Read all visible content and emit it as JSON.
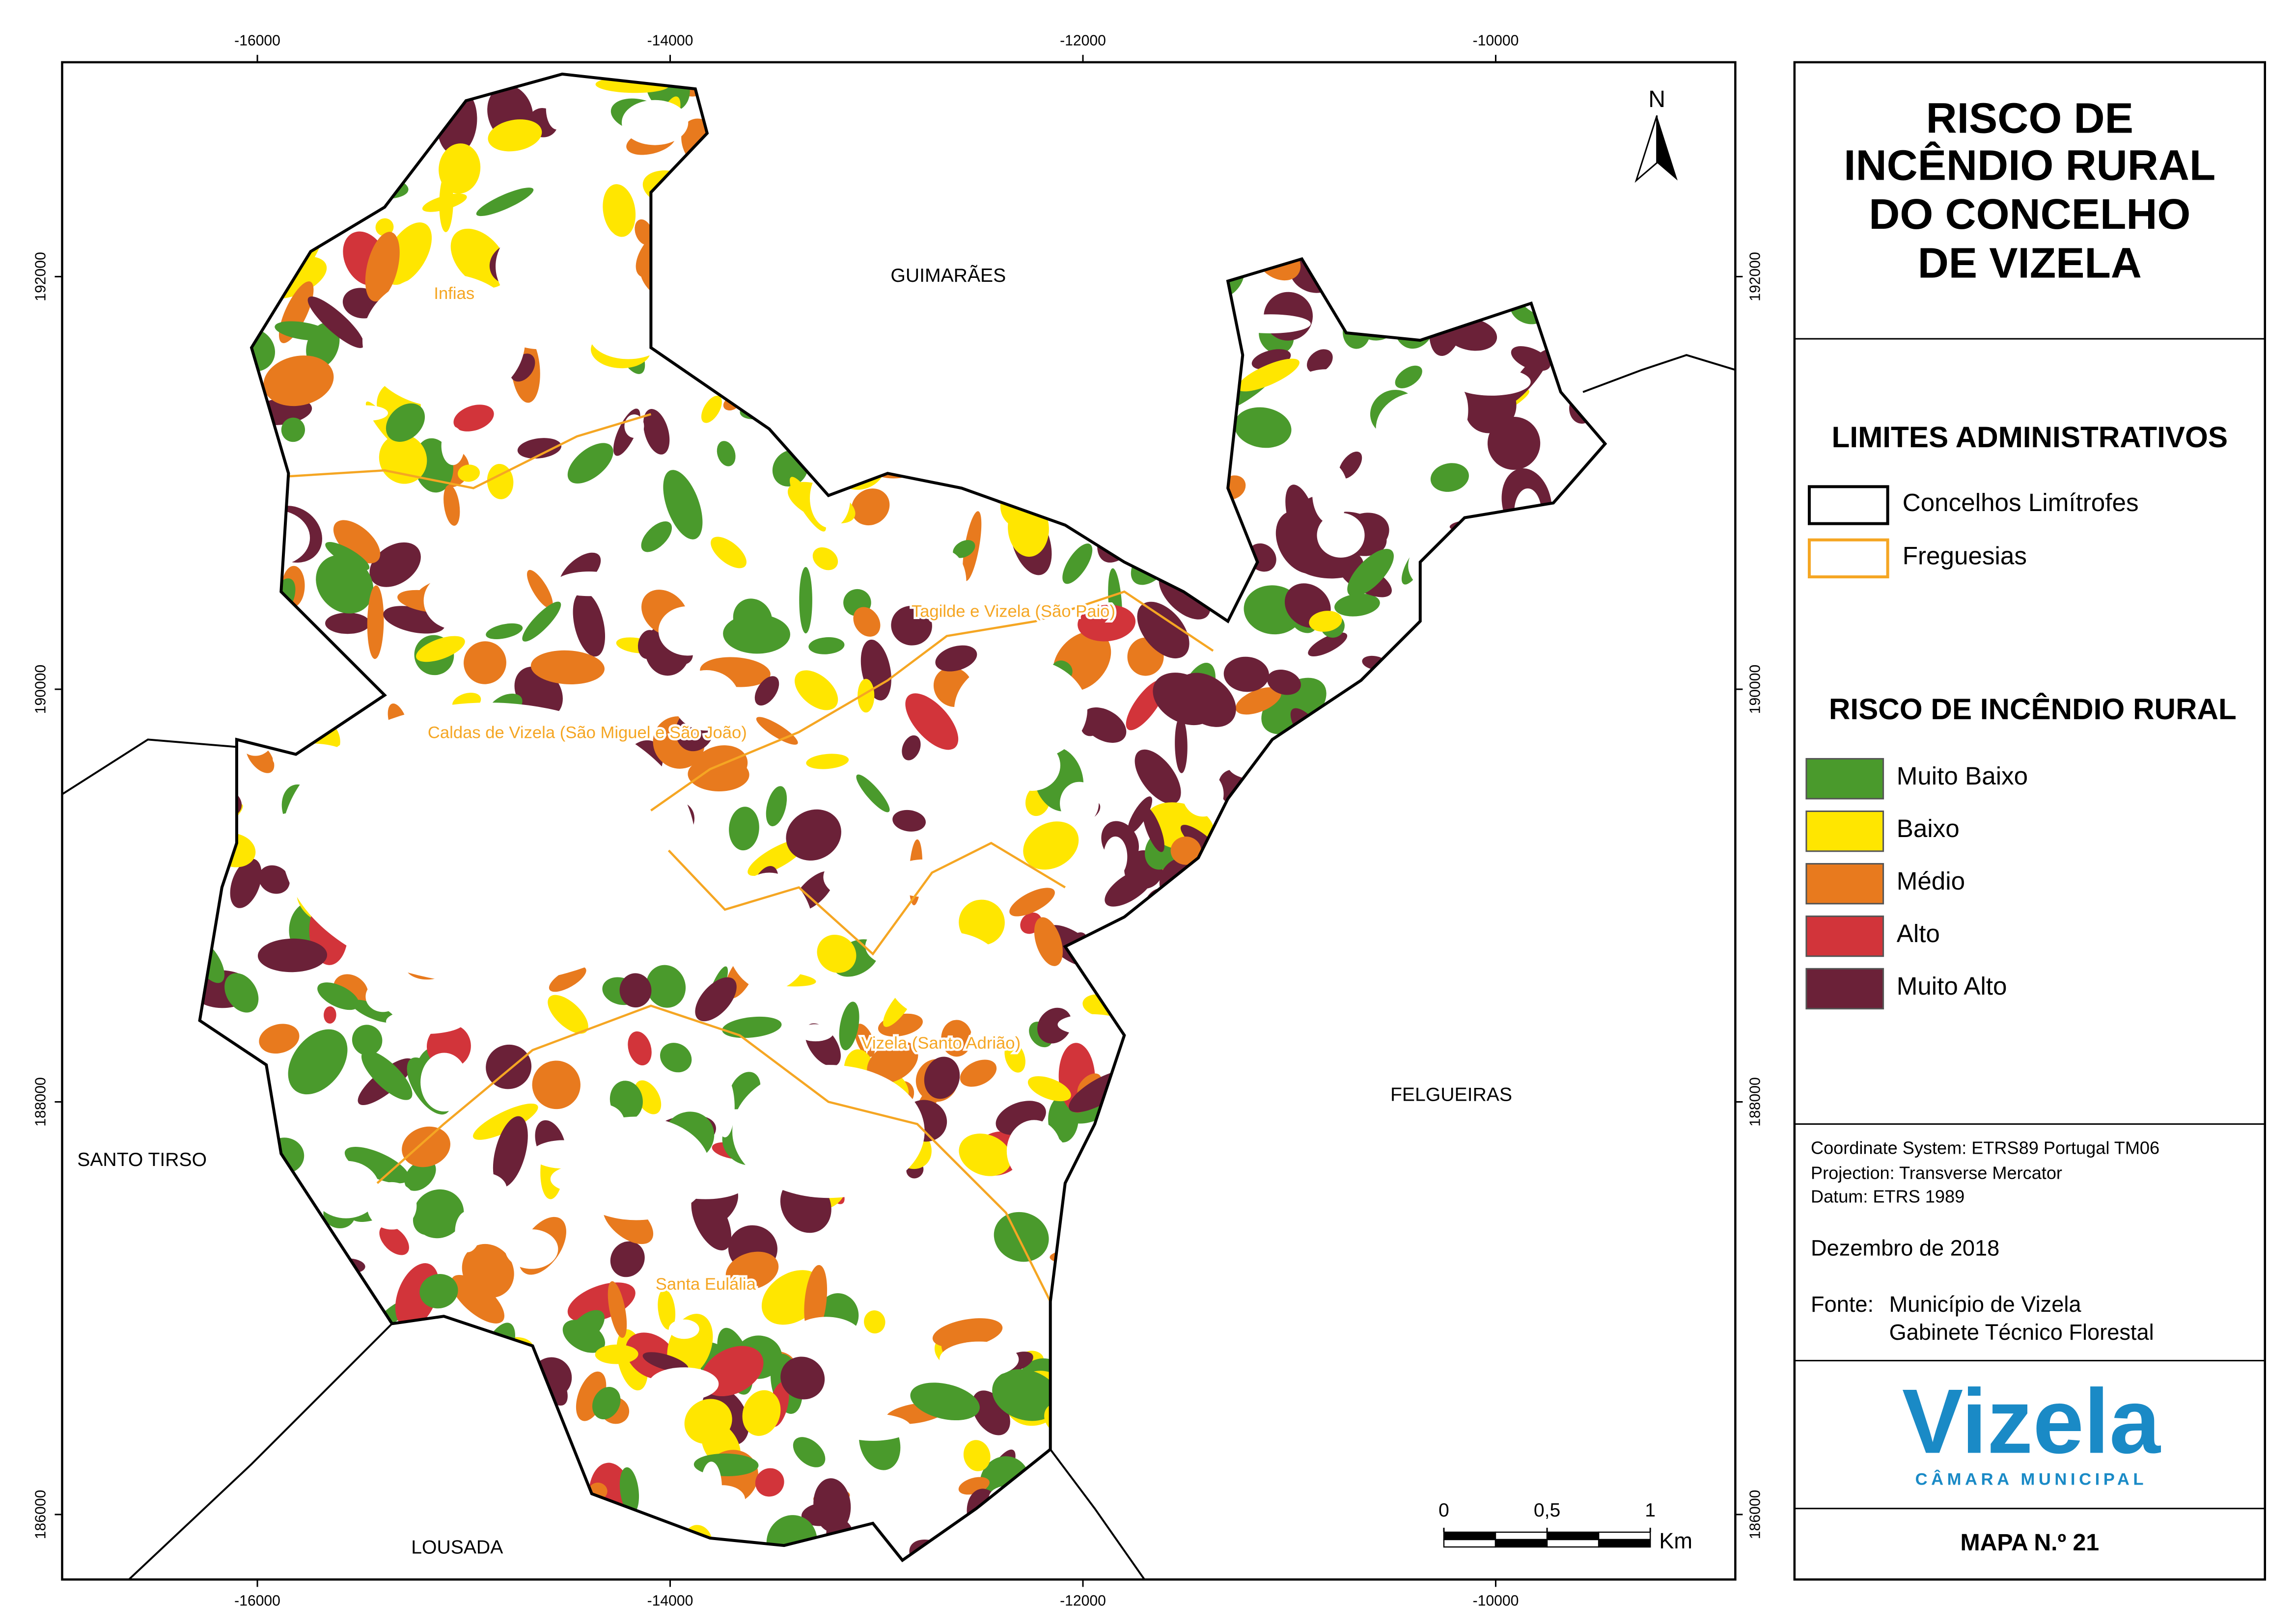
{
  "map": {
    "title_lines": [
      "RISCO DE",
      "INCÊNDIO RURAL",
      "DO CONCELHO",
      "DE VIZELA"
    ],
    "neighbors": [
      "GUIMARÃES",
      "FELGUEIRAS",
      "SANTO TIRSO",
      "LOUSADA"
    ],
    "parishes": [
      "Infias",
      "Tagilde e Vizela (São Paio)",
      "Caldas de Vizela (São Miguel e São João)",
      "Vizela (Santo Adrião)",
      "Santa Eulália"
    ],
    "north": "N",
    "xlim": [
      -16946,
      -8839
    ],
    "ylim": [
      185685,
      193039
    ],
    "xticks": [
      -16000,
      -14000,
      -12000,
      -10000
    ],
    "yticks": [
      192000,
      190000,
      188000,
      186000
    ],
    "scale_bar": {
      "ticks": [
        {
          "value": 0,
          "label": "0"
        },
        {
          "value": 0.5,
          "label": "0,5"
        },
        {
          "value": 1,
          "label": "1"
        }
      ],
      "unit": "Km"
    }
  },
  "legend": {
    "admin_title": "LIMITES ADMINISTRATIVOS",
    "admin_items": [
      {
        "name": "Concelhos Limítrofes",
        "color": "#000000"
      },
      {
        "name": "Freguesias",
        "color": "#f5a623"
      }
    ],
    "risk_title": "RISCO DE INCÊNDIO RURAL",
    "risk_classes": [
      {
        "name": "Muito Baixo",
        "color": "#4a9a2c"
      },
      {
        "name": "Baixo",
        "color": "#ffe600"
      },
      {
        "name": "Médio",
        "color": "#e87a1e"
      },
      {
        "name": "Alto",
        "color": "#d2343a"
      },
      {
        "name": "Muito Alto",
        "color": "#6b2138"
      }
    ]
  },
  "info": {
    "projection_lines": [
      "Coordinate System: ETRS89 Portugal TM06",
      "Projection: Transverse Mercator",
      "Datum: ETRS 1989"
    ],
    "date": "Dezembro de 2018",
    "source_label": "Fonte:",
    "source_lines": [
      "Município de Vizela",
      "Gabinete Técnico Florestal"
    ]
  },
  "logo": {
    "name": "Vizela",
    "subtitle": "CÂMARA MUNICIPAL"
  },
  "map_number": "MAPA N.º 21"
}
